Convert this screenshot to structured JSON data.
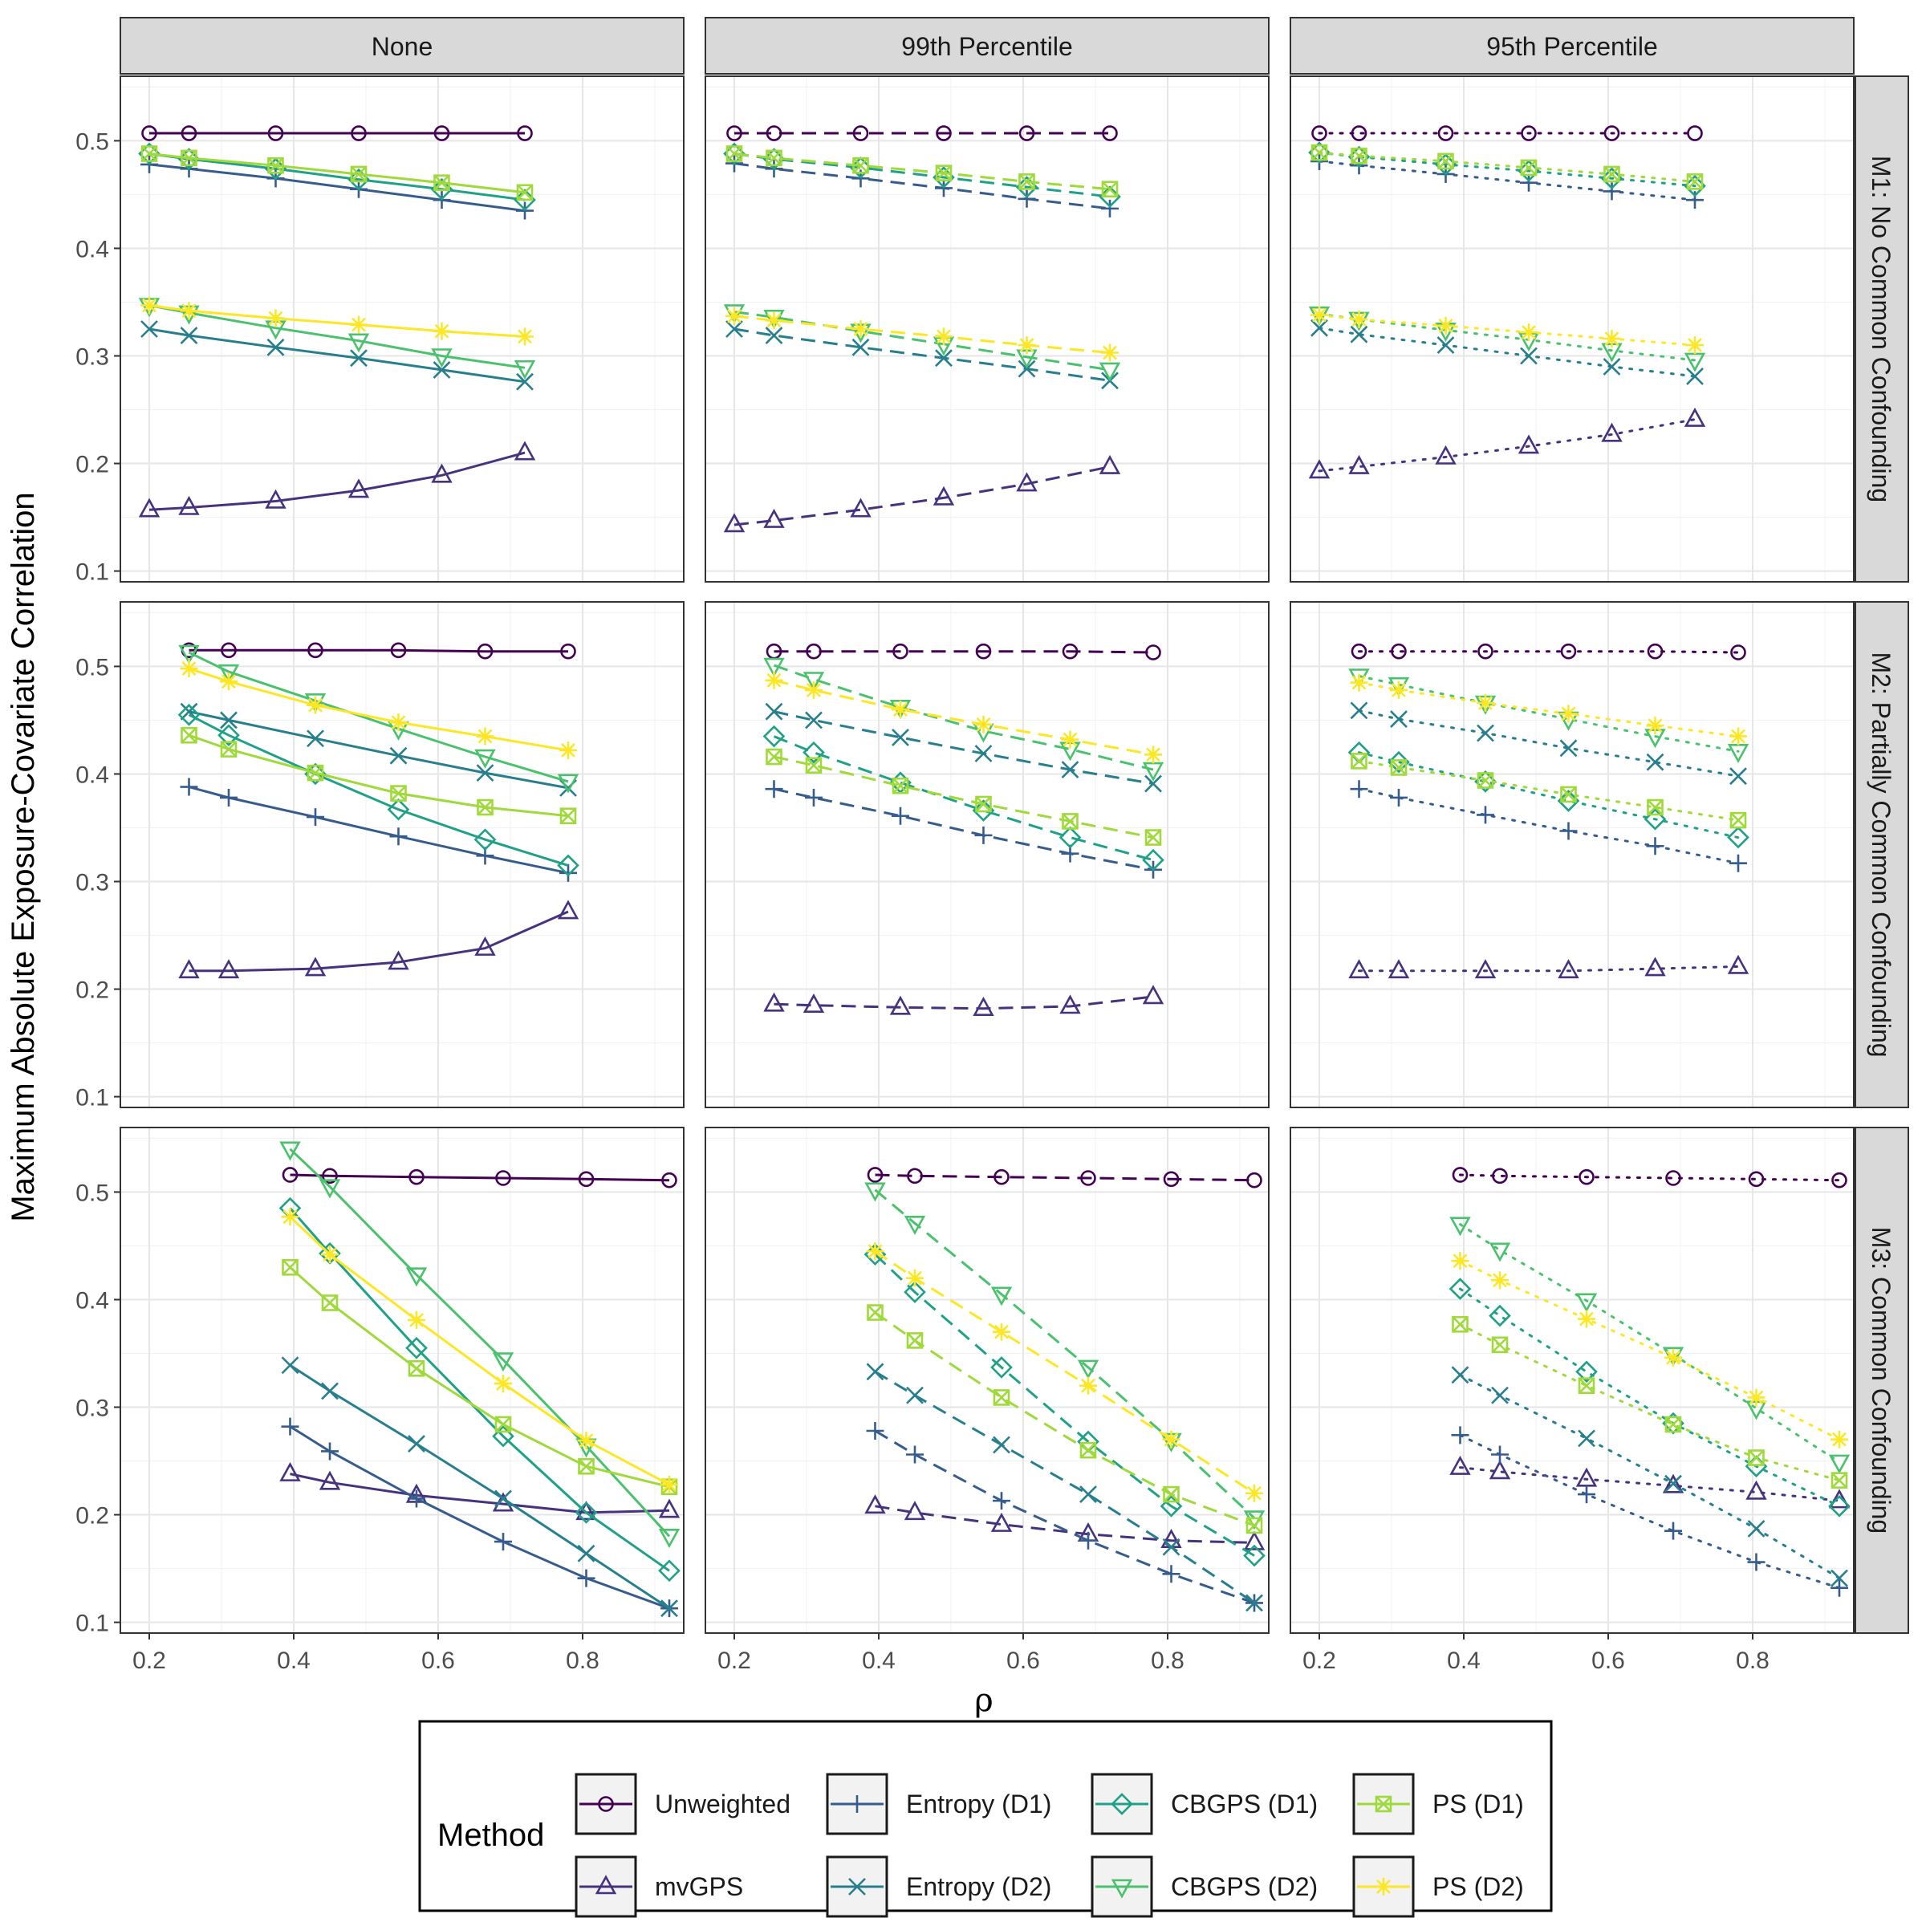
{
  "chart_data": {
    "type": "line",
    "ylabel": "Maximum Absolute Exposure-Covariate Correlation",
    "xlabel": "ρ",
    "xlim": [
      0.16,
      0.94
    ],
    "ylim": [
      0.09,
      0.56
    ],
    "xticks": [
      "0.2",
      "0.4",
      "0.6",
      "0.8"
    ],
    "yticks": [
      "0.1",
      "0.2",
      "0.3",
      "0.4",
      "0.5"
    ],
    "columns": [
      "None",
      "99th Percentile",
      "95th Percentile"
    ],
    "column_linestyles": [
      "solid",
      "dashed",
      "dotted"
    ],
    "rows": [
      "M1: No Common Confounding",
      "M2: Partially Common Confounding",
      "M3: Common Confounding"
    ],
    "legend": {
      "title": "Method",
      "position": "bottom",
      "entries": [
        "Unweighted",
        "mvGPS",
        "Entropy (D1)",
        "Entropy (D2)",
        "CBGPS (D1)",
        "CBGPS (D2)",
        "PS (D1)",
        "PS (D2)"
      ]
    },
    "methods": [
      {
        "name": "Unweighted",
        "color": "#440154",
        "marker": "circle"
      },
      {
        "name": "mvGPS",
        "color": "#46327E",
        "marker": "triangle"
      },
      {
        "name": "Entropy (D1)",
        "color": "#365C8D",
        "marker": "plus"
      },
      {
        "name": "Entropy (D2)",
        "color": "#277F8E",
        "marker": "cross"
      },
      {
        "name": "CBGPS (D1)",
        "color": "#1FA187",
        "marker": "diamond"
      },
      {
        "name": "CBGPS (D2)",
        "color": "#4AC16D",
        "marker": "triangle-down"
      },
      {
        "name": "PS (D1)",
        "color": "#9FDA3A",
        "marker": "square-x"
      },
      {
        "name": "PS (D2)",
        "color": "#FDE725",
        "marker": "asterisk"
      }
    ],
    "panels": [
      {
        "row": 0,
        "col": 0,
        "x": [
          0.2,
          0.255,
          0.375,
          0.49,
          0.605,
          0.72
        ],
        "series": [
          [
            0.507,
            0.507,
            0.507,
            0.507,
            0.507,
            0.507
          ],
          [
            0.157,
            0.159,
            0.165,
            0.175,
            0.189,
            0.21
          ],
          [
            0.478,
            0.474,
            0.465,
            0.455,
            0.445,
            0.435
          ],
          [
            0.325,
            0.319,
            0.308,
            0.298,
            0.287,
            0.276
          ],
          [
            0.488,
            0.483,
            0.474,
            0.464,
            0.455,
            0.445
          ],
          [
            0.347,
            0.34,
            0.326,
            0.314,
            0.3,
            0.289
          ],
          [
            0.488,
            0.484,
            0.477,
            0.469,
            0.461,
            0.452
          ],
          [
            0.347,
            0.342,
            0.335,
            0.329,
            0.323,
            0.318
          ]
        ]
      },
      {
        "row": 0,
        "col": 1,
        "x": [
          0.2,
          0.255,
          0.375,
          0.49,
          0.605,
          0.72
        ],
        "series": [
          [
            0.507,
            0.507,
            0.507,
            0.507,
            0.507,
            0.507
          ],
          [
            0.143,
            0.147,
            0.157,
            0.168,
            0.181,
            0.197
          ],
          [
            0.479,
            0.474,
            0.465,
            0.456,
            0.446,
            0.437
          ],
          [
            0.325,
            0.319,
            0.308,
            0.298,
            0.288,
            0.277
          ],
          [
            0.488,
            0.483,
            0.475,
            0.466,
            0.457,
            0.448
          ],
          [
            0.341,
            0.336,
            0.323,
            0.311,
            0.299,
            0.287
          ],
          [
            0.488,
            0.484,
            0.477,
            0.47,
            0.462,
            0.455
          ],
          [
            0.337,
            0.333,
            0.325,
            0.318,
            0.31,
            0.303
          ]
        ]
      },
      {
        "row": 0,
        "col": 2,
        "x": [
          0.2,
          0.255,
          0.375,
          0.49,
          0.605,
          0.72
        ],
        "series": [
          [
            0.507,
            0.507,
            0.507,
            0.507,
            0.507,
            0.507
          ],
          [
            0.193,
            0.197,
            0.206,
            0.216,
            0.227,
            0.241
          ],
          [
            0.481,
            0.477,
            0.469,
            0.461,
            0.453,
            0.445
          ],
          [
            0.326,
            0.32,
            0.31,
            0.3,
            0.29,
            0.281
          ],
          [
            0.489,
            0.485,
            0.478,
            0.472,
            0.465,
            0.458
          ],
          [
            0.339,
            0.334,
            0.324,
            0.315,
            0.305,
            0.296
          ],
          [
            0.489,
            0.486,
            0.481,
            0.475,
            0.469,
            0.462
          ],
          [
            0.338,
            0.334,
            0.328,
            0.322,
            0.316,
            0.31
          ]
        ]
      },
      {
        "row": 1,
        "col": 0,
        "x": [
          0.255,
          0.31,
          0.43,
          0.545,
          0.665,
          0.78
        ],
        "series": [
          [
            0.515,
            0.515,
            0.515,
            0.515,
            0.514,
            0.514
          ],
          [
            0.217,
            0.217,
            0.219,
            0.225,
            0.238,
            0.272
          ],
          [
            0.388,
            0.378,
            0.36,
            0.342,
            0.324,
            0.308
          ],
          [
            0.458,
            0.45,
            0.433,
            0.417,
            0.401,
            0.387
          ],
          [
            0.455,
            0.436,
            0.4,
            0.367,
            0.339,
            0.315
          ],
          [
            0.513,
            0.495,
            0.468,
            0.442,
            0.416,
            0.393
          ],
          [
            0.436,
            0.423,
            0.401,
            0.382,
            0.369,
            0.361
          ],
          [
            0.498,
            0.486,
            0.464,
            0.448,
            0.435,
            0.422
          ]
        ]
      },
      {
        "row": 1,
        "col": 1,
        "x": [
          0.255,
          0.31,
          0.43,
          0.545,
          0.665,
          0.78
        ],
        "series": [
          [
            0.514,
            0.514,
            0.514,
            0.514,
            0.514,
            0.513
          ],
          [
            0.186,
            0.185,
            0.183,
            0.182,
            0.184,
            0.193
          ],
          [
            0.386,
            0.378,
            0.361,
            0.343,
            0.326,
            0.311
          ],
          [
            0.458,
            0.45,
            0.434,
            0.419,
            0.404,
            0.391
          ],
          [
            0.435,
            0.42,
            0.392,
            0.366,
            0.341,
            0.32
          ],
          [
            0.501,
            0.488,
            0.462,
            0.44,
            0.423,
            0.404
          ],
          [
            0.416,
            0.408,
            0.389,
            0.372,
            0.356,
            0.341
          ],
          [
            0.487,
            0.478,
            0.46,
            0.446,
            0.432,
            0.418
          ]
        ]
      },
      {
        "row": 1,
        "col": 2,
        "x": [
          0.255,
          0.31,
          0.43,
          0.545,
          0.665,
          0.78
        ],
        "series": [
          [
            0.514,
            0.514,
            0.514,
            0.514,
            0.514,
            0.513
          ],
          [
            0.217,
            0.217,
            0.217,
            0.217,
            0.219,
            0.221
          ],
          [
            0.386,
            0.378,
            0.362,
            0.347,
            0.333,
            0.317
          ],
          [
            0.459,
            0.451,
            0.438,
            0.424,
            0.411,
            0.398
          ],
          [
            0.42,
            0.411,
            0.393,
            0.375,
            0.358,
            0.341
          ],
          [
            0.491,
            0.483,
            0.466,
            0.451,
            0.435,
            0.421
          ],
          [
            0.412,
            0.406,
            0.394,
            0.381,
            0.369,
            0.357
          ],
          [
            0.485,
            0.478,
            0.466,
            0.456,
            0.445,
            0.435
          ]
        ]
      },
      {
        "row": 2,
        "col": 0,
        "x": [
          0.395,
          0.45,
          0.57,
          0.69,
          0.805,
          0.92
        ],
        "series": [
          [
            0.516,
            0.515,
            0.514,
            0.513,
            0.512,
            0.511
          ],
          [
            0.238,
            0.23,
            0.218,
            0.21,
            0.202,
            0.204
          ],
          [
            0.282,
            0.259,
            0.215,
            0.175,
            0.141,
            0.113
          ],
          [
            0.339,
            0.315,
            0.266,
            0.215,
            0.164,
            0.113
          ],
          [
            0.485,
            0.443,
            0.355,
            0.273,
            0.202,
            0.148
          ],
          [
            0.54,
            0.505,
            0.423,
            0.344,
            0.264,
            0.18
          ],
          [
            0.43,
            0.397,
            0.336,
            0.284,
            0.245,
            0.226
          ],
          [
            0.477,
            0.442,
            0.381,
            0.322,
            0.269,
            0.228
          ]
        ]
      },
      {
        "row": 2,
        "col": 1,
        "x": [
          0.395,
          0.45,
          0.57,
          0.69,
          0.805,
          0.92
        ],
        "series": [
          [
            0.516,
            0.515,
            0.514,
            0.513,
            0.512,
            0.511
          ],
          [
            0.208,
            0.202,
            0.191,
            0.182,
            0.176,
            0.174
          ],
          [
            0.278,
            0.256,
            0.213,
            0.176,
            0.145,
            0.118
          ],
          [
            0.333,
            0.311,
            0.265,
            0.219,
            0.17,
            0.118
          ],
          [
            0.442,
            0.407,
            0.337,
            0.268,
            0.208,
            0.162
          ],
          [
            0.502,
            0.471,
            0.405,
            0.337,
            0.269,
            0.197
          ],
          [
            0.388,
            0.362,
            0.309,
            0.26,
            0.219,
            0.19
          ],
          [
            0.445,
            0.42,
            0.37,
            0.32,
            0.27,
            0.22
          ]
        ]
      },
      {
        "row": 2,
        "col": 2,
        "x": [
          0.395,
          0.45,
          0.57,
          0.69,
          0.805,
          0.92
        ],
        "series": [
          [
            0.516,
            0.515,
            0.514,
            0.513,
            0.512,
            0.511
          ],
          [
            0.244,
            0.24,
            0.233,
            0.227,
            0.221,
            0.213
          ],
          [
            0.274,
            0.256,
            0.219,
            0.185,
            0.156,
            0.132
          ],
          [
            0.33,
            0.311,
            0.271,
            0.229,
            0.187,
            0.141
          ],
          [
            0.41,
            0.385,
            0.333,
            0.285,
            0.245,
            0.208
          ],
          [
            0.47,
            0.446,
            0.399,
            0.349,
            0.299,
            0.249
          ],
          [
            0.377,
            0.358,
            0.32,
            0.284,
            0.253,
            0.232
          ],
          [
            0.436,
            0.418,
            0.382,
            0.346,
            0.309,
            0.27
          ]
        ]
      }
    ]
  }
}
